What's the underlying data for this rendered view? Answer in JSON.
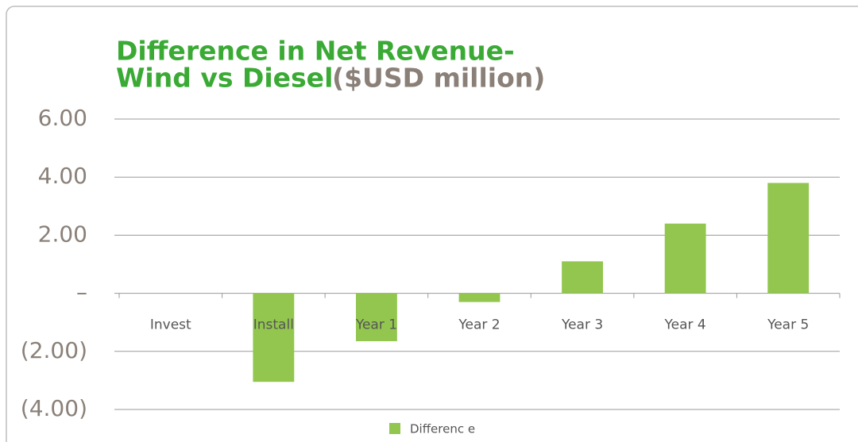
{
  "chart_data": {
    "type": "bar",
    "title": [
      "Difference in Net Revenue-",
      "Wind vs Diesel"
    ],
    "subtitle": "($USD million)",
    "categories": [
      "Invest",
      "Install",
      "Year 1",
      "Year 2",
      "Year 3",
      "Year 4",
      "Year 5"
    ],
    "series": [
      {
        "name": "Differenc e",
        "color": "#92c64e",
        "values": [
          0,
          -3.05,
          -1.65,
          -0.3,
          1.1,
          2.4,
          3.8
        ]
      }
    ],
    "ylim": [
      -4,
      6
    ],
    "yticks": [
      {
        "value": -4,
        "label": "(4.00)"
      },
      {
        "value": -2,
        "label": "(2.00)"
      },
      {
        "value": 0,
        "label": "–"
      },
      {
        "value": 2,
        "label": "2.00"
      },
      {
        "value": 4,
        "label": "4.00"
      },
      {
        "value": 6,
        "label": "6.00"
      }
    ],
    "grid": true,
    "legend": "bottom"
  }
}
